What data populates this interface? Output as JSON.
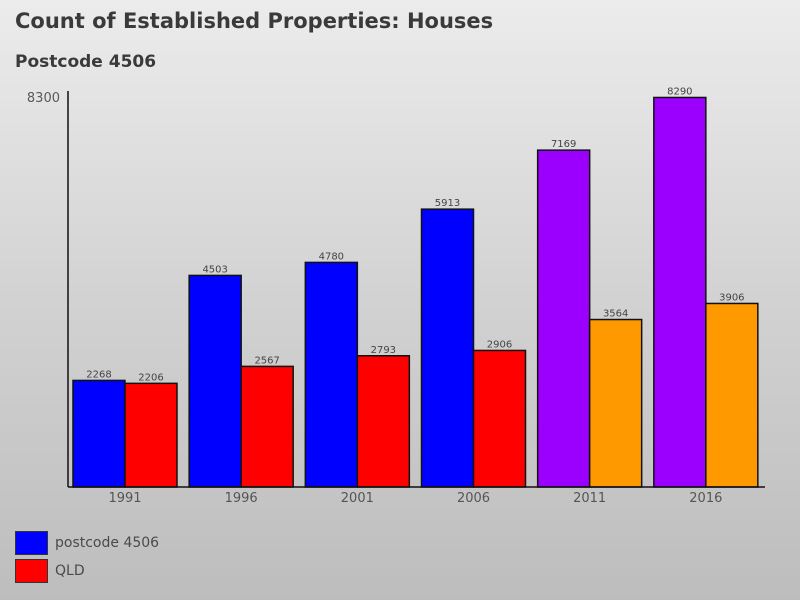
{
  "chart_data": {
    "type": "bar",
    "title": "Count of Established Properties: Houses",
    "subtitle": "Postcode 4506",
    "categories": [
      "1991",
      "1996",
      "2001",
      "2006",
      "2011",
      "2016"
    ],
    "ymax_label": "8300",
    "ylim": [
      0,
      8300
    ],
    "series": [
      {
        "name": "postcode 4506",
        "values": [
          2268,
          4503,
          4780,
          5913,
          7169,
          8290
        ],
        "colors": [
          "#0000ff",
          "#0000ff",
          "#0000ff",
          "#0000ff",
          "#9b00ff",
          "#9b00ff"
        ]
      },
      {
        "name": "QLD",
        "values": [
          2206,
          2567,
          2793,
          2906,
          3564,
          3906
        ],
        "colors": [
          "#ff0000",
          "#ff0000",
          "#ff0000",
          "#ff0000",
          "#ff9900",
          "#ff9900"
        ]
      }
    ],
    "legend_position": "bottom-left",
    "legend": [
      {
        "label": "postcode 4506",
        "color": "#0000ff"
      },
      {
        "label": "QLD",
        "color": "#ff0000"
      }
    ]
  }
}
